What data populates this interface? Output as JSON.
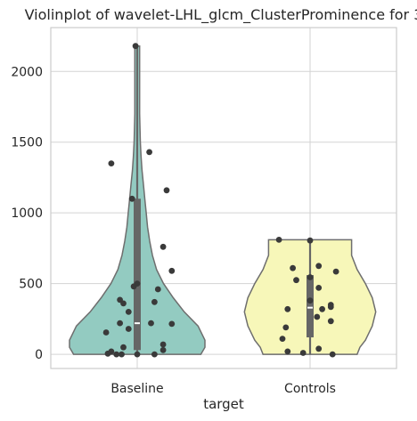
{
  "chart_data": {
    "type": "violin",
    "title": "Violinplot of wavelet-LHL_glcm_ClusterProminence for 3",
    "xlabel": "target",
    "ylabel": "",
    "categories": [
      "Baseline",
      "Controls"
    ],
    "ylim": [
      -100,
      2310
    ],
    "yticks": [
      0,
      500,
      1000,
      1500,
      2000
    ],
    "grid": true,
    "colors": {
      "Baseline": "#93cbc1",
      "Controls": "#f7f7b9",
      "points": "#3a3a3a",
      "box": "#666666",
      "outline": "#6e6e6e"
    },
    "violins": [
      {
        "name": "Baseline",
        "max": 2180,
        "min": 0,
        "q1": 30,
        "median": 220,
        "q3": 1100,
        "profile": [
          [
            0,
            0.92
          ],
          [
            50,
            0.98
          ],
          [
            100,
            0.98
          ],
          [
            200,
            0.88
          ],
          [
            300,
            0.68
          ],
          [
            400,
            0.52
          ],
          [
            500,
            0.38
          ],
          [
            600,
            0.28
          ],
          [
            700,
            0.22
          ],
          [
            800,
            0.18
          ],
          [
            900,
            0.15
          ],
          [
            1000,
            0.13
          ],
          [
            1100,
            0.11
          ],
          [
            1200,
            0.09
          ],
          [
            1300,
            0.07
          ],
          [
            1400,
            0.055
          ],
          [
            1500,
            0.045
          ],
          [
            1600,
            0.04
          ],
          [
            1700,
            0.035
          ],
          [
            1800,
            0.035
          ],
          [
            1900,
            0.035
          ],
          [
            2000,
            0.035
          ],
          [
            2100,
            0.035
          ],
          [
            2180,
            0.035
          ]
        ],
        "points": [
          [
            -0.01,
            2180
          ],
          [
            -0.15,
            1350
          ],
          [
            0.07,
            1430
          ],
          [
            -0.03,
            1100
          ],
          [
            0.17,
            1160
          ],
          [
            0.15,
            760
          ],
          [
            0.2,
            590
          ],
          [
            -0.1,
            385
          ],
          [
            0.0,
            500
          ],
          [
            -0.02,
            480
          ],
          [
            0.12,
            460
          ],
          [
            -0.08,
            360
          ],
          [
            0.1,
            370
          ],
          [
            -0.05,
            300
          ],
          [
            -0.1,
            220
          ],
          [
            0.08,
            220
          ],
          [
            0.2,
            215
          ],
          [
            -0.05,
            180
          ],
          [
            -0.18,
            155
          ],
          [
            0.15,
            70
          ],
          [
            -0.08,
            50
          ],
          [
            0.15,
            30
          ],
          [
            -0.15,
            20
          ],
          [
            -0.17,
            5
          ],
          [
            -0.12,
            0
          ],
          [
            -0.09,
            0
          ],
          [
            0.1,
            0
          ],
          [
            0.0,
            0
          ]
        ]
      },
      {
        "name": "Controls",
        "max": 810,
        "min": 0,
        "q1": 120,
        "median": 330,
        "q3": 560,
        "profile": [
          [
            0,
            0.68
          ],
          [
            50,
            0.72
          ],
          [
            100,
            0.8
          ],
          [
            200,
            0.9
          ],
          [
            300,
            0.95
          ],
          [
            400,
            0.9
          ],
          [
            500,
            0.8
          ],
          [
            600,
            0.68
          ],
          [
            700,
            0.6
          ],
          [
            800,
            0.6
          ],
          [
            810,
            0.6
          ]
        ],
        "points": [
          [
            -0.18,
            810
          ],
          [
            0.0,
            805
          ],
          [
            -0.1,
            610
          ],
          [
            0.05,
            625
          ],
          [
            0.15,
            585
          ],
          [
            -0.08,
            525
          ],
          [
            0.0,
            545
          ],
          [
            0.05,
            470
          ],
          [
            0.0,
            380
          ],
          [
            0.12,
            350
          ],
          [
            0.12,
            335
          ],
          [
            -0.13,
            320
          ],
          [
            0.07,
            320
          ],
          [
            0.04,
            265
          ],
          [
            0.12,
            235
          ],
          [
            -0.14,
            190
          ],
          [
            -0.16,
            110
          ],
          [
            -0.13,
            20
          ],
          [
            -0.04,
            10
          ],
          [
            0.05,
            40
          ],
          [
            0.13,
            0
          ]
        ]
      }
    ]
  }
}
